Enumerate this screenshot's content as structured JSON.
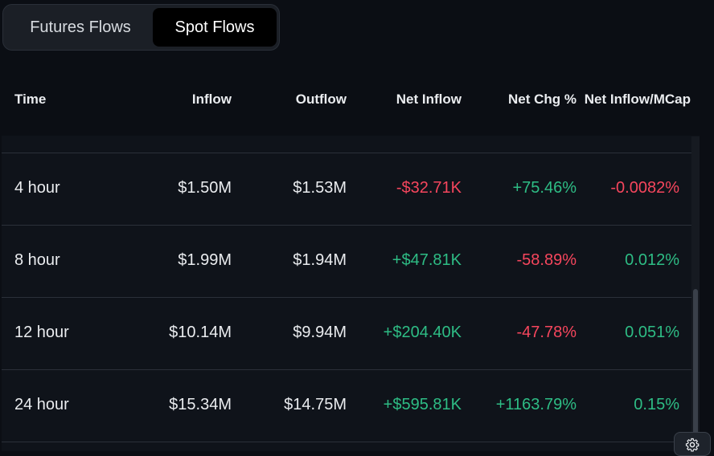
{
  "tabs": [
    {
      "label": "Futures Flows",
      "active": false
    },
    {
      "label": "Spot Flows",
      "active": true
    }
  ],
  "table": {
    "headers": {
      "time": "Time",
      "inflow": "Inflow",
      "outflow": "Outflow",
      "net_inflow": "Net Inflow",
      "net_chg": "Net Chg %",
      "net_inflow_mcap": "Net Inflow/MCap"
    },
    "rows": [
      {
        "time": "4 hour",
        "inflow": "$1.50M",
        "outflow": "$1.53M",
        "net_inflow": "-$32.71K",
        "net_chg": "+75.46%",
        "net_inflow_mcap": "-0.0082%"
      },
      {
        "time": "8 hour",
        "inflow": "$1.99M",
        "outflow": "$1.94M",
        "net_inflow": "+$47.81K",
        "net_chg": "-58.89%",
        "net_inflow_mcap": "0.012%"
      },
      {
        "time": "12 hour",
        "inflow": "$10.14M",
        "outflow": "$9.94M",
        "net_inflow": "+$204.40K",
        "net_chg": "-47.78%",
        "net_inflow_mcap": "0.051%"
      },
      {
        "time": "24 hour",
        "inflow": "$15.34M",
        "outflow": "$14.75M",
        "net_inflow": "+$595.81K",
        "net_chg": "+1163.79%",
        "net_inflow_mcap": "0.15%"
      }
    ]
  },
  "colors": {
    "positive": "#2ebd85",
    "negative": "#f6465d",
    "background": "#0b0e14"
  },
  "icons": {
    "settings": "gear-icon"
  }
}
